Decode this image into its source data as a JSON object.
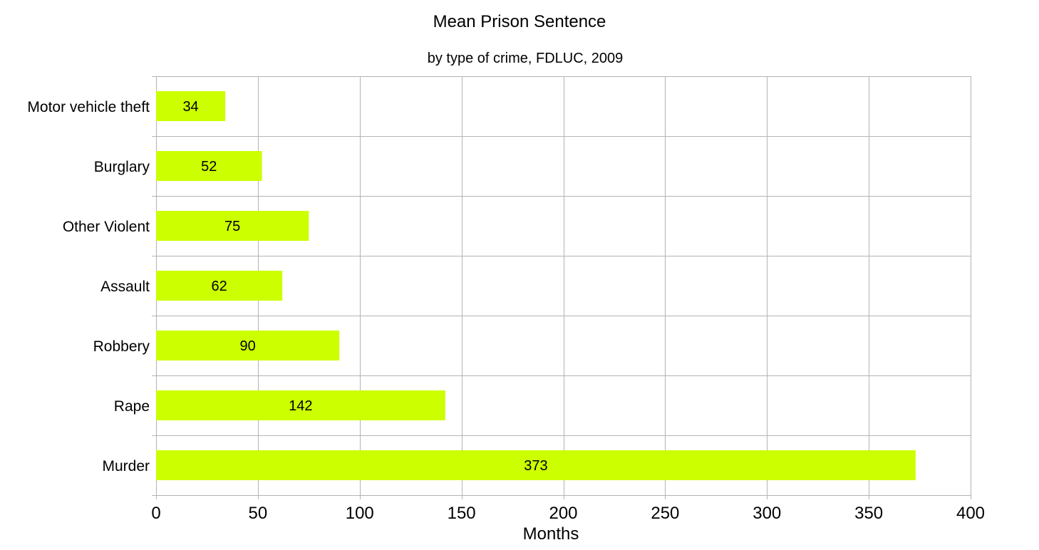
{
  "chart_data": {
    "type": "bar",
    "orientation": "horizontal",
    "title": "Mean Prison Sentence",
    "subtitle": "by type of crime, FDLUC, 2009",
    "xlabel": "Months",
    "ylabel": "",
    "categories": [
      "Motor vehicle theft",
      "Burglary",
      "Other Violent",
      "Assault",
      "Robbery",
      "Rape",
      "Murder"
    ],
    "values": [
      34,
      52,
      75,
      62,
      90,
      142,
      373
    ],
    "data_labels": [
      "34",
      "52",
      "75",
      "62",
      "90",
      "142",
      "373"
    ],
    "xlim": [
      0,
      400
    ],
    "x_ticks": [
      0,
      50,
      100,
      150,
      200,
      250,
      300,
      350,
      400
    ],
    "x_tick_labels": [
      "0",
      "50",
      "100",
      "150",
      "200",
      "250",
      "300",
      "350",
      "400"
    ],
    "grid": true,
    "legend": "none",
    "bar_color": "#ccff00",
    "grid_color": "#b3b3b3"
  }
}
